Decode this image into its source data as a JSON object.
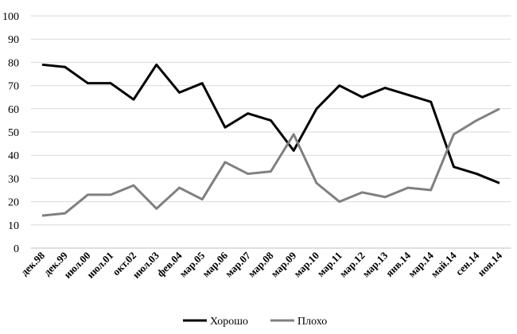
{
  "chart_data": {
    "type": "line",
    "categories": [
      "дек.98",
      "дек.99",
      "июл.00",
      "июл.01",
      "окт.02",
      "июл.03",
      "фев.04",
      "мар.05",
      "мар.06",
      "мар.07",
      "мар.08",
      "мар.09",
      "мар.10",
      "мар.11",
      "мар.12",
      "мар.13",
      "янв.14",
      "мар.14",
      "май.14",
      "сен.14",
      "ноя.14"
    ],
    "series": [
      {
        "name": "Хорошо",
        "color": "#000000",
        "values": [
          79,
          78,
          71,
          71,
          64,
          79,
          67,
          71,
          52,
          58,
          55,
          42,
          60,
          70,
          65,
          69,
          66,
          63,
          35,
          32,
          28
        ]
      },
      {
        "name": "Плохо",
        "color": "#808080",
        "values": [
          14,
          15,
          23,
          23,
          27,
          17,
          26,
          21,
          37,
          32,
          33,
          49,
          28,
          20,
          24,
          22,
          26,
          25,
          49,
          55,
          60
        ]
      }
    ],
    "ylim": [
      0,
      100
    ],
    "yticks": [
      0,
      10,
      20,
      30,
      40,
      50,
      60,
      70,
      80,
      90,
      100
    ],
    "grid": true,
    "legend": "bottom"
  }
}
